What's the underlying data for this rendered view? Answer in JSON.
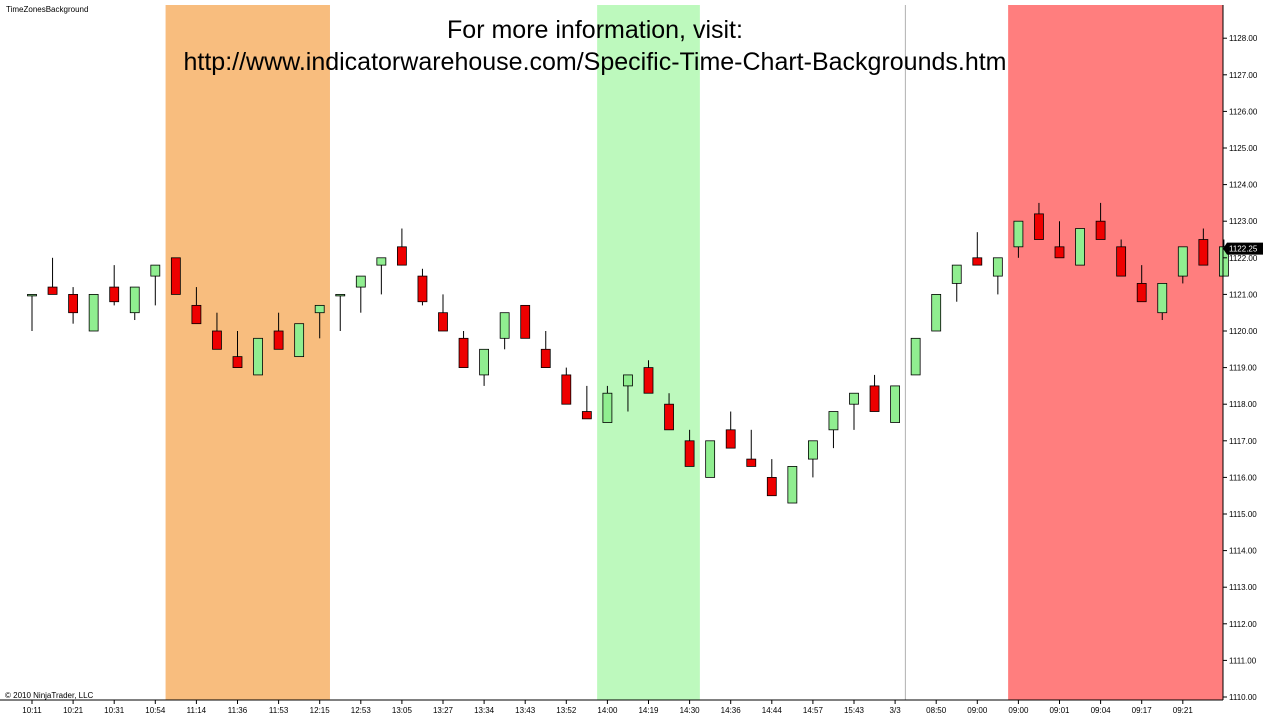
{
  "indicator_title": "TimeZonesBackground",
  "info_line_1": "For more information, visit:",
  "info_line_2": "http://www.indicatorwarehouse.com/Specific-Time-Chart-Backgrounds.htm",
  "copyright": "© 2010 NinjaTrader, LLC",
  "colors": {
    "background": "#ffffff",
    "zone_orange": "#f8bd7e",
    "zone_green": "#bdf9bd",
    "zone_red": "#ff7e7e",
    "up_candle": "#90ee90",
    "down_candle": "#ee0000",
    "candle_outline": "#000000",
    "last_price_tag": "#000000"
  },
  "chart_data": {
    "type": "candlestick",
    "ylim": [
      1110,
      1128.5
    ],
    "y_ticks": [
      "1110.00",
      "1111.00",
      "1112.00",
      "1113.00",
      "1114.00",
      "1115.00",
      "1116.00",
      "1117.00",
      "1118.00",
      "1119.00",
      "1120.00",
      "1121.00",
      "1122.00",
      "1123.00",
      "1124.00",
      "1125.00",
      "1126.00",
      "1127.00",
      "1128.00"
    ],
    "x_tick_labels": [
      "10:11",
      "10:21",
      "10:31",
      "10:54",
      "11:14",
      "11:36",
      "11:53",
      "12:15",
      "12:53",
      "13:05",
      "13:27",
      "13:34",
      "13:43",
      "13:52",
      "14:00",
      "14:19",
      "14:30",
      "14:36",
      "14:44",
      "14:57",
      "15:43",
      "3/3",
      "08:50",
      "09:00",
      "09:00",
      "09:01",
      "09:04",
      "09:17",
      "09:21"
    ],
    "last_price": "1122.25",
    "session_break_after_bar": 42,
    "time_zones": [
      {
        "color": "orange",
        "from_bar": 7,
        "to_bar": 14
      },
      {
        "color": "green",
        "from_bar": 28,
        "to_bar": 32
      },
      {
        "color": "red",
        "from_bar": 48,
        "to_bar": 58
      }
    ],
    "bars": [
      {
        "open": 1121.0,
        "high": 1121.0,
        "low": 1120.0,
        "close": 1121.0
      },
      {
        "open": 1121.2,
        "high": 1122.0,
        "low": 1121.0,
        "close": 1121.0
      },
      {
        "open": 1121.0,
        "high": 1121.2,
        "low": 1120.2,
        "close": 1120.5
      },
      {
        "open": 1120.0,
        "high": 1121.0,
        "low": 1120.0,
        "close": 1121.0
      },
      {
        "open": 1121.2,
        "high": 1121.8,
        "low": 1120.7,
        "close": 1120.8
      },
      {
        "open": 1120.5,
        "high": 1121.2,
        "low": 1120.3,
        "close": 1121.2
      },
      {
        "open": 1121.5,
        "high": 1121.8,
        "low": 1120.7,
        "close": 1121.8
      },
      {
        "open": 1122.0,
        "high": 1122.0,
        "low": 1121.0,
        "close": 1121.0
      },
      {
        "open": 1120.7,
        "high": 1121.2,
        "low": 1120.2,
        "close": 1120.2
      },
      {
        "open": 1120.0,
        "high": 1120.5,
        "low": 1119.5,
        "close": 1119.5
      },
      {
        "open": 1119.3,
        "high": 1120.0,
        "low": 1119.0,
        "close": 1119.0
      },
      {
        "open": 1118.8,
        "high": 1119.8,
        "low": 1118.8,
        "close": 1119.8
      },
      {
        "open": 1120.0,
        "high": 1120.5,
        "low": 1119.5,
        "close": 1119.5
      },
      {
        "open": 1119.3,
        "high": 1120.2,
        "low": 1119.3,
        "close": 1120.2
      },
      {
        "open": 1120.5,
        "high": 1120.7,
        "low": 1119.8,
        "close": 1120.7
      },
      {
        "open": 1121.0,
        "high": 1121.0,
        "low": 1120.0,
        "close": 1121.0
      },
      {
        "open": 1121.2,
        "high": 1121.5,
        "low": 1120.5,
        "close": 1121.5
      },
      {
        "open": 1121.8,
        "high": 1122.0,
        "low": 1121.0,
        "close": 1122.0
      },
      {
        "open": 1122.3,
        "high": 1122.8,
        "low": 1121.8,
        "close": 1121.8
      },
      {
        "open": 1121.5,
        "high": 1121.7,
        "low": 1120.7,
        "close": 1120.8
      },
      {
        "open": 1120.5,
        "high": 1121.0,
        "low": 1120.0,
        "close": 1120.0
      },
      {
        "open": 1119.8,
        "high": 1120.0,
        "low": 1119.0,
        "close": 1119.0
      },
      {
        "open": 1118.8,
        "high": 1119.5,
        "low": 1118.5,
        "close": 1119.5
      },
      {
        "open": 1119.8,
        "high": 1120.5,
        "low": 1119.5,
        "close": 1120.5
      },
      {
        "open": 1120.7,
        "high": 1120.7,
        "low": 1119.8,
        "close": 1119.8
      },
      {
        "open": 1119.5,
        "high": 1120.0,
        "low": 1119.0,
        "close": 1119.0
      },
      {
        "open": 1118.8,
        "high": 1119.0,
        "low": 1118.0,
        "close": 1118.0
      },
      {
        "open": 1117.8,
        "high": 1118.5,
        "low": 1117.6,
        "close": 1117.6
      },
      {
        "open": 1117.5,
        "high": 1118.5,
        "low": 1117.5,
        "close": 1118.3
      },
      {
        "open": 1118.5,
        "high": 1118.8,
        "low": 1117.8,
        "close": 1118.8
      },
      {
        "open": 1119.0,
        "high": 1119.2,
        "low": 1118.3,
        "close": 1118.3
      },
      {
        "open": 1118.0,
        "high": 1118.3,
        "low": 1117.3,
        "close": 1117.3
      },
      {
        "open": 1117.0,
        "high": 1117.3,
        "low": 1116.3,
        "close": 1116.3
      },
      {
        "open": 1116.0,
        "high": 1117.0,
        "low": 1116.0,
        "close": 1117.0
      },
      {
        "open": 1117.3,
        "high": 1117.8,
        "low": 1116.8,
        "close": 1116.8
      },
      {
        "open": 1116.5,
        "high": 1117.3,
        "low": 1116.3,
        "close": 1116.3
      },
      {
        "open": 1116.0,
        "high": 1116.5,
        "low": 1115.5,
        "close": 1115.5
      },
      {
        "open": 1115.3,
        "high": 1116.3,
        "low": 1115.3,
        "close": 1116.3
      },
      {
        "open": 1116.5,
        "high": 1117.0,
        "low": 1116.0,
        "close": 1117.0
      },
      {
        "open": 1117.3,
        "high": 1117.8,
        "low": 1116.8,
        "close": 1117.8
      },
      {
        "open": 1118.0,
        "high": 1118.3,
        "low": 1117.3,
        "close": 1118.3
      },
      {
        "open": 1118.5,
        "high": 1118.8,
        "low": 1117.8,
        "close": 1117.8
      },
      {
        "open": 1117.5,
        "high": 1118.5,
        "low": 1117.5,
        "close": 1118.5
      },
      {
        "open": 1118.8,
        "high": 1119.8,
        "low": 1118.8,
        "close": 1119.8
      },
      {
        "open": 1120.0,
        "high": 1121.0,
        "low": 1120.0,
        "close": 1121.0
      },
      {
        "open": 1121.3,
        "high": 1121.8,
        "low": 1120.8,
        "close": 1121.8
      },
      {
        "open": 1122.0,
        "high": 1122.7,
        "low": 1121.8,
        "close": 1121.8
      },
      {
        "open": 1121.5,
        "high": 1122.0,
        "low": 1121.0,
        "close": 1122.0
      },
      {
        "open": 1122.3,
        "high": 1123.0,
        "low": 1122.0,
        "close": 1123.0
      },
      {
        "open": 1123.2,
        "high": 1123.5,
        "low": 1122.5,
        "close": 1122.5
      },
      {
        "open": 1122.3,
        "high": 1123.0,
        "low": 1122.0,
        "close": 1122.0
      },
      {
        "open": 1121.8,
        "high": 1122.8,
        "low": 1121.8,
        "close": 1122.8
      },
      {
        "open": 1123.0,
        "high": 1123.5,
        "low": 1122.5,
        "close": 1122.5
      },
      {
        "open": 1122.3,
        "high": 1122.5,
        "low": 1121.5,
        "close": 1121.5
      },
      {
        "open": 1121.3,
        "high": 1121.8,
        "low": 1120.8,
        "close": 1120.8
      },
      {
        "open": 1120.5,
        "high": 1121.3,
        "low": 1120.3,
        "close": 1121.3
      },
      {
        "open": 1121.5,
        "high": 1122.3,
        "low": 1121.3,
        "close": 1122.3
      },
      {
        "open": 1122.5,
        "high": 1122.8,
        "low": 1121.8,
        "close": 1121.8
      },
      {
        "open": 1121.5,
        "high": 1122.5,
        "low": 1121.5,
        "close": 1122.3
      }
    ]
  }
}
